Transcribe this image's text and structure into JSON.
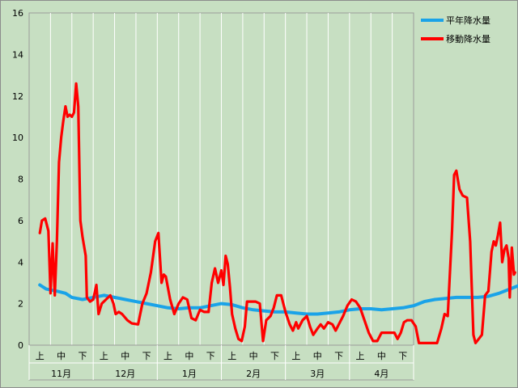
{
  "chart_data": {
    "type": "line",
    "ylim": [
      0,
      16
    ],
    "yticks": [
      "0",
      "2",
      "4",
      "6",
      "8",
      "10",
      "12",
      "14",
      "16"
    ],
    "grid": "vertical lines between ten-day periods",
    "legend_position": "right",
    "x_subgroups": [
      "上",
      "中",
      "下"
    ],
    "x_groups": [
      "11月",
      "12月",
      "1月",
      "2月",
      "3月",
      "4月"
    ],
    "series": [
      {
        "name": "平年降水量",
        "color": "#1aa3e8",
        "points": [
          [
            0,
            2.9
          ],
          [
            0.3,
            2.7
          ],
          [
            0.8,
            2.6
          ],
          [
            1.2,
            2.5
          ],
          [
            1.5,
            2.3
          ],
          [
            2,
            2.2
          ],
          [
            2.5,
            2.3
          ],
          [
            3,
            2.4
          ],
          [
            3.5,
            2.3
          ],
          [
            4,
            2.2
          ],
          [
            4.5,
            2.1
          ],
          [
            5,
            2.0
          ],
          [
            5.5,
            1.9
          ],
          [
            6,
            1.8
          ],
          [
            6.5,
            1.75
          ],
          [
            7,
            1.8
          ],
          [
            7.5,
            1.8
          ],
          [
            8,
            1.9
          ],
          [
            8.5,
            2.0
          ],
          [
            9,
            1.95
          ],
          [
            9.5,
            1.8
          ],
          [
            10,
            1.7
          ],
          [
            10.5,
            1.65
          ],
          [
            11,
            1.6
          ],
          [
            11.5,
            1.6
          ],
          [
            12,
            1.55
          ],
          [
            12.5,
            1.5
          ],
          [
            13,
            1.5
          ],
          [
            13.5,
            1.55
          ],
          [
            14,
            1.6
          ],
          [
            14.5,
            1.7
          ],
          [
            15,
            1.75
          ],
          [
            15.5,
            1.75
          ],
          [
            16,
            1.7
          ],
          [
            16.5,
            1.75
          ],
          [
            17,
            1.8
          ],
          [
            17.5,
            1.9
          ],
          [
            18,
            2.1
          ],
          [
            18.5,
            2.2
          ],
          [
            19,
            2.25
          ],
          [
            19.5,
            2.3
          ],
          [
            20,
            2.3
          ],
          [
            20.5,
            2.3
          ],
          [
            21,
            2.35
          ],
          [
            21.5,
            2.5
          ],
          [
            22,
            2.7
          ],
          [
            22.5,
            2.9
          ],
          [
            23,
            3.1
          ],
          [
            23.5,
            3.2
          ],
          [
            24,
            3.2
          ],
          [
            24.5,
            3.1
          ],
          [
            24.9,
            3.0
          ]
        ]
      },
      {
        "name": "移動降水量",
        "color": "#ff0000",
        "points": [
          [
            0,
            5.4
          ],
          [
            0.1,
            6.0
          ],
          [
            0.25,
            6.1
          ],
          [
            0.4,
            5.5
          ],
          [
            0.5,
            2.5
          ],
          [
            0.6,
            4.9
          ],
          [
            0.7,
            2.4
          ],
          [
            0.8,
            5.0
          ],
          [
            0.9,
            8.8
          ],
          [
            1.0,
            10.0
          ],
          [
            1.1,
            10.8
          ],
          [
            1.2,
            11.5
          ],
          [
            1.3,
            11.0
          ],
          [
            1.4,
            11.1
          ],
          [
            1.5,
            11.0
          ],
          [
            1.6,
            11.2
          ],
          [
            1.7,
            12.6
          ],
          [
            1.8,
            11.5
          ],
          [
            1.9,
            6.0
          ],
          [
            2.0,
            5.2
          ],
          [
            2.15,
            4.3
          ],
          [
            2.2,
            2.3
          ],
          [
            2.35,
            2.1
          ],
          [
            2.5,
            2.2
          ],
          [
            2.65,
            2.9
          ],
          [
            2.75,
            1.5
          ],
          [
            2.9,
            2.0
          ],
          [
            3.1,
            2.2
          ],
          [
            3.3,
            2.4
          ],
          [
            3.45,
            2.0
          ],
          [
            3.55,
            1.5
          ],
          [
            3.7,
            1.6
          ],
          [
            3.85,
            1.5
          ],
          [
            4.1,
            1.2
          ],
          [
            4.3,
            1.05
          ],
          [
            4.6,
            1.0
          ],
          [
            4.8,
            2.0
          ],
          [
            5.0,
            2.5
          ],
          [
            5.2,
            3.5
          ],
          [
            5.4,
            5.0
          ],
          [
            5.55,
            5.4
          ],
          [
            5.7,
            3.0
          ],
          [
            5.8,
            3.4
          ],
          [
            5.9,
            3.3
          ],
          [
            6.1,
            2.2
          ],
          [
            6.3,
            1.5
          ],
          [
            6.5,
            2.0
          ],
          [
            6.7,
            2.3
          ],
          [
            6.9,
            2.2
          ],
          [
            7.1,
            1.3
          ],
          [
            7.3,
            1.2
          ],
          [
            7.5,
            1.7
          ],
          [
            7.7,
            1.6
          ],
          [
            7.9,
            1.6
          ],
          [
            8.05,
            3.0
          ],
          [
            8.2,
            3.7
          ],
          [
            8.35,
            3.0
          ],
          [
            8.5,
            3.6
          ],
          [
            8.6,
            2.9
          ],
          [
            8.7,
            4.3
          ],
          [
            8.8,
            3.9
          ],
          [
            8.9,
            2.8
          ],
          [
            9.0,
            1.5
          ],
          [
            9.15,
            0.8
          ],
          [
            9.3,
            0.3
          ],
          [
            9.45,
            0.2
          ],
          [
            9.6,
            0.9
          ],
          [
            9.7,
            2.1
          ],
          [
            9.9,
            2.1
          ],
          [
            10.1,
            2.1
          ],
          [
            10.3,
            2.0
          ],
          [
            10.45,
            0.2
          ],
          [
            10.6,
            1.2
          ],
          [
            10.8,
            1.4
          ],
          [
            10.95,
            1.8
          ],
          [
            11.1,
            2.4
          ],
          [
            11.3,
            2.4
          ],
          [
            11.5,
            1.6
          ],
          [
            11.7,
            1.0
          ],
          [
            11.85,
            0.7
          ],
          [
            12.0,
            1.1
          ],
          [
            12.1,
            0.8
          ],
          [
            12.3,
            1.2
          ],
          [
            12.5,
            1.4
          ],
          [
            12.65,
            0.9
          ],
          [
            12.8,
            0.5
          ],
          [
            13.0,
            0.8
          ],
          [
            13.15,
            1.0
          ],
          [
            13.3,
            0.8
          ],
          [
            13.5,
            1.1
          ],
          [
            13.7,
            1.0
          ],
          [
            13.85,
            0.7
          ],
          [
            14.0,
            1.0
          ],
          [
            14.2,
            1.4
          ],
          [
            14.4,
            1.9
          ],
          [
            14.6,
            2.2
          ],
          [
            14.8,
            2.1
          ],
          [
            15.0,
            1.8
          ],
          [
            15.2,
            1.2
          ],
          [
            15.4,
            0.6
          ],
          [
            15.6,
            0.2
          ],
          [
            15.8,
            0.2
          ],
          [
            16.0,
            0.6
          ],
          [
            16.2,
            0.6
          ],
          [
            16.4,
            0.6
          ],
          [
            16.6,
            0.6
          ],
          [
            16.75,
            0.3
          ],
          [
            16.9,
            0.6
          ],
          [
            17.05,
            1.1
          ],
          [
            17.2,
            1.2
          ],
          [
            17.4,
            1.2
          ],
          [
            17.6,
            0.9
          ],
          [
            17.75,
            0.1
          ],
          [
            18.0,
            0.1
          ],
          [
            18.3,
            0.1
          ],
          [
            18.6,
            0.1
          ],
          [
            18.8,
            0.8
          ],
          [
            18.95,
            1.5
          ],
          [
            19.1,
            1.4
          ],
          [
            19.3,
            5.5
          ],
          [
            19.4,
            8.2
          ],
          [
            19.5,
            8.4
          ],
          [
            19.65,
            7.5
          ],
          [
            19.8,
            7.2
          ],
          [
            20.0,
            7.1
          ],
          [
            20.15,
            5.0
          ],
          [
            20.3,
            0.5
          ],
          [
            20.4,
            0.1
          ],
          [
            20.55,
            0.3
          ],
          [
            20.7,
            0.5
          ],
          [
            20.85,
            2.4
          ],
          [
            21.0,
            2.6
          ],
          [
            21.15,
            4.5
          ],
          [
            21.25,
            5.0
          ],
          [
            21.35,
            4.8
          ],
          [
            21.45,
            5.3
          ],
          [
            21.55,
            5.9
          ],
          [
            21.65,
            4.0
          ],
          [
            21.75,
            4.6
          ],
          [
            21.85,
            4.8
          ],
          [
            21.95,
            4.2
          ],
          [
            22.0,
            2.3
          ],
          [
            22.1,
            4.7
          ],
          [
            22.2,
            3.4
          ],
          [
            22.25,
            3.5
          ]
        ]
      }
    ]
  }
}
